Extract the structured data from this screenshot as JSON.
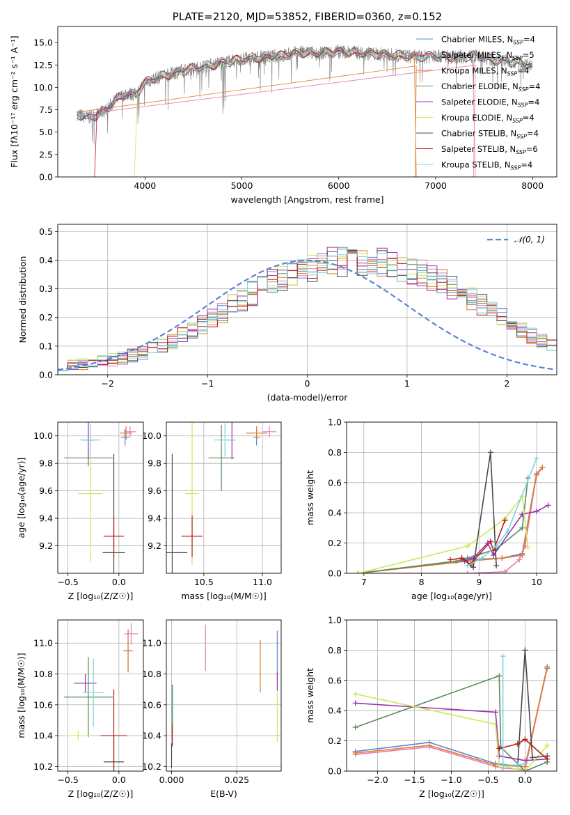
{
  "colors": {
    "Chabrier MILES": "#5b84d6",
    "Salpeter MILES": "#e87bb1",
    "Kroupa MILES": "#e07b2a",
    "Chabrier ELODIE": "#5a8a5a",
    "Salpeter ELODIE": "#9932b0",
    "Kroupa ELODIE": "#cde85a",
    "Chabrier STELIB": "#4a4a4a",
    "Salpeter STELIB": "#b51b1b",
    "Kroupa STELIB": "#7fd3dd",
    "gauss": "#5b84d6",
    "data": "#7f7f7f"
  },
  "chart_data": [
    {
      "id": "spectrum",
      "type": "line",
      "title": "PLATE=2120, MJD=53852, FIBERID=0360, z=0.152",
      "xlabel": "wavelength [Angstrom, rest frame]",
      "ylabel": "Flux [fλ10⁻¹⁷ erg cm⁻² s⁻¹ A⁻¹]",
      "xlim": [
        3100,
        8250
      ],
      "ylim": [
        0,
        16.8
      ],
      "xticks": [
        4000,
        5000,
        6000,
        7000,
        8000
      ],
      "yticks": [
        0.0,
        2.5,
        5.0,
        7.5,
        10.0,
        12.5,
        15.0
      ],
      "grid": false,
      "legend_position": "top-right",
      "continuum_x": [
        3300,
        3400,
        3500,
        3600,
        3700,
        3800,
        3900,
        4000,
        4100,
        4200,
        4400,
        4600,
        4800,
        5000,
        5200,
        5400,
        5600,
        5800,
        6000,
        6200,
        6400,
        6600,
        6800,
        7000,
        7200,
        7400,
        7600,
        7800,
        8000
      ],
      "continuum_y": [
        7.0,
        6.6,
        6.9,
        7.5,
        8.6,
        9.3,
        9.2,
        10.5,
        11.0,
        11.3,
        11.9,
        12.3,
        12.8,
        13.1,
        13.4,
        13.5,
        13.9,
        13.8,
        14.0,
        13.9,
        13.7,
        13.6,
        13.4,
        13.5,
        13.4,
        13.5,
        13.1,
        12.9,
        12.4
      ],
      "dropouts": [
        {
          "series": "Salpeter STELIB",
          "x": [
            3480,
            3500,
            3505
          ]
        },
        {
          "series": "Kroupa ELODIE",
          "x": [
            3890,
            3920,
            3925
          ]
        },
        {
          "series": "Kroupa MILES",
          "x": [
            6790,
            6800,
            6805
          ]
        },
        {
          "series": "Salpeter MILES",
          "x": [
            7390,
            7410,
            7415
          ]
        }
      ],
      "legend": [
        {
          "series": "Chabrier MILES",
          "prefix": "Chabrier MILES, N",
          "sub": "SSP",
          "suffix": "=4"
        },
        {
          "series": "Salpeter MILES",
          "prefix": "Salpeter MILES, N",
          "sub": "SSP",
          "suffix": "=5"
        },
        {
          "series": "Kroupa MILES",
          "prefix": "Kroupa MILES, N",
          "sub": "SSP",
          "suffix": "=4"
        },
        {
          "series": "Chabrier ELODIE",
          "prefix": "Chabrier ELODIE, N",
          "sub": "SSP",
          "suffix": "=4"
        },
        {
          "series": "Salpeter ELODIE",
          "prefix": "Salpeter ELODIE, N",
          "sub": "SSP",
          "suffix": "=4"
        },
        {
          "series": "Kroupa ELODIE",
          "prefix": "Kroupa ELODIE, N",
          "sub": "SSP",
          "suffix": "=4"
        },
        {
          "series": "Chabrier STELIB",
          "prefix": "Chabrier STELIB, N",
          "sub": "SSP",
          "suffix": "=4"
        },
        {
          "series": "Salpeter STELIB",
          "prefix": "Salpeter STELIB, N",
          "sub": "SSP",
          "suffix": "=6"
        },
        {
          "series": "Kroupa STELIB",
          "prefix": "Kroupa STELIB, N",
          "sub": "SSP",
          "suffix": "=4"
        }
      ]
    },
    {
      "id": "residuals",
      "type": "bar",
      "xlabel": "(data-model)/error",
      "ylabel": "Normed distribution",
      "xlim": [
        -2.5,
        2.5
      ],
      "ylim": [
        0,
        0.525
      ],
      "xticks": [
        -2,
        -1,
        0,
        1,
        2
      ],
      "yticks": [
        0.0,
        0.1,
        0.2,
        0.3,
        0.4,
        0.5
      ],
      "grid": true,
      "legend_position": "top-right",
      "gauss_label": "𝒩(0, 1)",
      "bin_width": 0.1,
      "bin_start": -2.5,
      "envelope": [
        0.035,
        0.036,
        0.039,
        0.043,
        0.047,
        0.052,
        0.058,
        0.066,
        0.076,
        0.088,
        0.102,
        0.118,
        0.135,
        0.155,
        0.175,
        0.197,
        0.218,
        0.241,
        0.262,
        0.284,
        0.303,
        0.322,
        0.338,
        0.353,
        0.365,
        0.376,
        0.386,
        0.392,
        0.396,
        0.398,
        0.398,
        0.396,
        0.392,
        0.386,
        0.376,
        0.365,
        0.353,
        0.338,
        0.322,
        0.303,
        0.284,
        0.262,
        0.241,
        0.218,
        0.197,
        0.175,
        0.155,
        0.135,
        0.118,
        0.102,
        0.088,
        0.076,
        0.066,
        0.058,
        0.052,
        0.047,
        0.043,
        0.039,
        0.036,
        0.035
      ],
      "series_order": [
        "Chabrier MILES",
        "Salpeter MILES",
        "Kroupa MILES",
        "Chabrier ELODIE",
        "Salpeter ELODIE",
        "Kroupa ELODIE",
        "Chabrier STELIB",
        "Salpeter STELIB",
        "Kroupa STELIB"
      ]
    },
    {
      "id": "age-vs-Z",
      "type": "scatter",
      "xlabel": "Z [log₁₀(Z/Z☉)]",
      "ylabel": "age  [log₁₀(age/yr)]",
      "xlim": [
        -0.6,
        0.24
      ],
      "ylim": [
        9.0,
        10.1
      ],
      "xticks": [
        -0.5,
        0.0
      ],
      "xticklabels": [
        "−0.5",
        "0.0"
      ],
      "yticks": [
        9.2,
        9.4,
        9.6,
        9.8,
        10.0
      ],
      "grid": true,
      "points": [
        {
          "series": "Chabrier MILES",
          "x": 0.06,
          "y": 9.99,
          "xerr": 0.04,
          "yerr": 0.06
        },
        {
          "series": "Salpeter MILES",
          "x": 0.11,
          "y": 10.03,
          "xerr": 0.06,
          "yerr": 0.04
        },
        {
          "series": "Kroupa MILES",
          "x": 0.07,
          "y": 10.02,
          "xerr": 0.06,
          "yerr": 0.05
        },
        {
          "series": "Chabrier ELODIE",
          "x": -0.3,
          "y": 9.84,
          "xerr": 0.24,
          "yerr": 0.06
        },
        {
          "series": "Salpeter ELODIE",
          "x": -0.3,
          "y": 9.97,
          "xerr": 0.06,
          "yerr": 0.14
        },
        {
          "series": "Kroupa ELODIE",
          "x": -0.28,
          "y": 9.58,
          "xerr": 0.12,
          "yerr": 0.5
        },
        {
          "series": "Chabrier STELIB",
          "x": -0.05,
          "y": 9.15,
          "xerr": 0.11,
          "yerr": 0.72
        },
        {
          "series": "Salpeter STELIB",
          "x": -0.05,
          "y": 9.27,
          "xerr": 0.1,
          "yerr": 0.15
        },
        {
          "series": "Kroupa STELIB",
          "x": -0.28,
          "y": 9.97,
          "xerr": 0.1,
          "yerr": 0.12
        }
      ]
    },
    {
      "id": "age-vs-mass",
      "type": "scatter",
      "xlabel": "mass [log₁₀(M/M☉)]",
      "ylabel": "",
      "xlim": [
        10.18,
        11.16
      ],
      "ylim": [
        9.0,
        10.1
      ],
      "xticks": [
        10.5,
        11.0
      ],
      "xticklabels": [
        "10.5",
        "11.0"
      ],
      "yticks": [
        9.2,
        9.4,
        9.6,
        9.8,
        10.0
      ],
      "grid": true,
      "points": [
        {
          "series": "Chabrier MILES",
          "x": 10.95,
          "y": 9.99,
          "xerr": 0.03,
          "yerr": 0.06
        },
        {
          "series": "Salpeter MILES",
          "x": 11.06,
          "y": 10.03,
          "xerr": 0.06,
          "yerr": 0.04
        },
        {
          "series": "Kroupa MILES",
          "x": 10.95,
          "y": 10.02,
          "xerr": 0.09,
          "yerr": 0.05
        },
        {
          "series": "Chabrier ELODIE",
          "x": 10.65,
          "y": 9.84,
          "xerr": 0.11,
          "yerr": 0.24
        },
        {
          "series": "Salpeter ELODIE",
          "x": 10.74,
          "y": 9.97,
          "xerr": 0.03,
          "yerr": 0.14
        },
        {
          "series": "Kroupa ELODIE",
          "x": 10.4,
          "y": 9.58,
          "xerr": 0.06,
          "yerr": 0.52
        },
        {
          "series": "Chabrier STELIB",
          "x": 10.23,
          "y": 9.15,
          "xerr": 0.13,
          "yerr": 0.72
        },
        {
          "series": "Salpeter STELIB",
          "x": 10.4,
          "y": 9.27,
          "xerr": 0.09,
          "yerr": 0.15
        },
        {
          "series": "Kroupa STELIB",
          "x": 10.68,
          "y": 9.97,
          "xerr": 0.09,
          "yerr": 0.12
        }
      ]
    },
    {
      "id": "weight-vs-age",
      "type": "line",
      "xlabel": "age  [log₁₀(age/yr)]",
      "ylabel": "mass weight",
      "xlim": [
        6.7,
        10.35
      ],
      "ylim": [
        0.0,
        1.0
      ],
      "xticks": [
        7,
        8,
        9,
        10
      ],
      "yticks": [
        0.0,
        0.2,
        0.4,
        0.6,
        0.8,
        1.0
      ],
      "grid": true,
      "series": [
        {
          "name": "Chabrier MILES",
          "x": [
            6.9,
            8.8,
            9.4,
            9.75,
            10.0,
            10.1
          ],
          "y": [
            0.0,
            0.09,
            0.1,
            0.13,
            0.66,
            0.7
          ]
        },
        {
          "name": "Salpeter MILES",
          "x": [
            6.9,
            8.8,
            9.45,
            9.7,
            9.8,
            10.0,
            10.1
          ],
          "y": [
            0.0,
            0.0,
            0.01,
            0.09,
            0.18,
            0.66,
            0.7
          ]
        },
        {
          "name": "Kroupa MILES",
          "x": [
            6.9,
            8.8,
            9.4,
            9.75,
            10.0,
            10.1
          ],
          "y": [
            0.0,
            0.08,
            0.1,
            0.12,
            0.65,
            0.7
          ]
        },
        {
          "name": "Chabrier ELODIE",
          "x": [
            6.9,
            8.6,
            8.8,
            9.3,
            9.75,
            9.85
          ],
          "y": [
            0.0,
            0.08,
            0.1,
            0.16,
            0.3,
            0.63
          ]
        },
        {
          "name": "Salpeter ELODIE",
          "x": [
            8.75,
            8.9,
            9.15,
            9.25,
            9.75,
            10.0,
            10.2
          ],
          "y": [
            0.08,
            0.1,
            0.2,
            0.12,
            0.39,
            0.41,
            0.45
          ]
        },
        {
          "name": "Kroupa ELODIE",
          "x": [
            6.9,
            8.8,
            9.45,
            9.75,
            9.85
          ],
          "y": [
            0.0,
            0.18,
            0.36,
            0.51,
            0.17
          ]
        },
        {
          "name": "Chabrier STELIB",
          "x": [
            8.7,
            8.9,
            9.2,
            9.3
          ],
          "y": [
            0.1,
            0.04,
            0.8,
            0.05
          ]
        },
        {
          "name": "Salpeter STELIB",
          "x": [
            8.5,
            8.7,
            8.85,
            9.2,
            9.25,
            9.45
          ],
          "y": [
            0.09,
            0.1,
            0.06,
            0.21,
            0.15,
            0.35
          ]
        },
        {
          "name": "Kroupa STELIB",
          "x": [
            8.8,
            9.05,
            9.3,
            9.5,
            10.0
          ],
          "y": [
            0.05,
            0.1,
            0.18,
            0.28,
            0.76
          ]
        }
      ]
    },
    {
      "id": "mass-vs-Z",
      "type": "scatter",
      "xlabel": "Z [log₁₀(Z/Z☉)]",
      "ylabel": "mass [log₁₀(M/M☉)]",
      "xlim": [
        -0.6,
        0.24
      ],
      "ylim": [
        10.17,
        11.15
      ],
      "xticks": [
        -0.5,
        0.0
      ],
      "xticklabels": [
        "−0.5",
        "0.0"
      ],
      "yticks": [
        10.2,
        10.4,
        10.6,
        10.8,
        11.0
      ],
      "grid": true,
      "points": [
        {
          "series": "Chabrier MILES",
          "x": 0.09,
          "y": 10.95,
          "xerr": 0.04,
          "yerr": 0.14
        },
        {
          "series": "Salpeter MILES",
          "x": 0.12,
          "y": 11.06,
          "xerr": 0.07,
          "yerr": 0.07
        },
        {
          "series": "Kroupa MILES",
          "x": 0.09,
          "y": 10.95,
          "xerr": 0.05,
          "yerr": 0.13
        },
        {
          "series": "Chabrier ELODIE",
          "x": -0.3,
          "y": 10.65,
          "xerr": 0.24,
          "yerr": 0.26
        },
        {
          "series": "Salpeter ELODIE",
          "x": -0.33,
          "y": 10.74,
          "xerr": 0.11,
          "yerr": 0.06
        },
        {
          "series": "Kroupa ELODIE",
          "x": -0.4,
          "y": 10.4,
          "xerr": 0.12,
          "yerr": 0.03
        },
        {
          "series": "Chabrier STELIB",
          "x": -0.05,
          "y": 10.23,
          "xerr": 0.1,
          "yerr": 0.16
        },
        {
          "series": "Salpeter STELIB",
          "x": -0.05,
          "y": 10.4,
          "xerr": 0.13,
          "yerr": 0.3
        },
        {
          "series": "Kroupa STELIB",
          "x": -0.25,
          "y": 10.68,
          "xerr": 0.1,
          "yerr": 0.22
        }
      ]
    },
    {
      "id": "mass-vs-EBV",
      "type": "scatter",
      "xlabel": "E(B-V)",
      "ylabel": "",
      "xlim": [
        -0.002,
        0.042
      ],
      "ylim": [
        10.17,
        11.15
      ],
      "xticks": [
        0.0,
        0.025
      ],
      "xticklabels": [
        "0.000",
        "0.025"
      ],
      "yticks": [
        10.2,
        10.4,
        10.6,
        10.8,
        11.0
      ],
      "grid": true,
      "points": [
        {
          "series": "Chabrier MILES",
          "x": 0.0405,
          "y": 10.92,
          "xerr": 0.0,
          "yerr": 0.16
        },
        {
          "series": "Salpeter MILES",
          "x": 0.013,
          "y": 10.97,
          "xerr": 0.0,
          "yerr": 0.15
        },
        {
          "series": "Kroupa MILES",
          "x": 0.034,
          "y": 10.85,
          "xerr": 0.0,
          "yerr": 0.17
        },
        {
          "series": "Chabrier ELODIE",
          "x": 0.0002,
          "y": 10.55,
          "xerr": 0.0,
          "yerr": 0.18
        },
        {
          "series": "Salpeter ELODIE",
          "x": 0.0405,
          "y": 10.75,
          "xerr": 0.0,
          "yerr": 0.06
        },
        {
          "series": "Kroupa ELODIE",
          "x": 0.0405,
          "y": 10.52,
          "xerr": 0.0,
          "yerr": 0.16
        },
        {
          "series": "Chabrier STELIB",
          "x": 0.0,
          "y": 10.27,
          "xerr": 0.0,
          "yerr": 0.08
        },
        {
          "series": "Salpeter STELIB",
          "x": 0.0003,
          "y": 10.4,
          "xerr": 0.0,
          "yerr": 0.07
        },
        {
          "series": "Kroupa STELIB",
          "x": 0.0005,
          "y": 10.6,
          "xerr": 0.0,
          "yerr": 0.13
        }
      ]
    },
    {
      "id": "weight-vs-Z",
      "type": "line",
      "xlabel": "Z [log₁₀(Z/Z☉)]",
      "ylabel": "mass weight",
      "xlim": [
        -2.42,
        0.43
      ],
      "ylim": [
        0.0,
        1.0
      ],
      "xticks": [
        -2.0,
        -1.5,
        -1.0,
        -0.5,
        0.0
      ],
      "xticklabels": [
        "−2.0",
        "−1.5",
        "−1.0",
        "−0.5",
        "0.0"
      ],
      "yticks": [
        0.0,
        0.2,
        0.4,
        0.6,
        0.8,
        1.0
      ],
      "grid": true,
      "series": [
        {
          "name": "Chabrier MILES",
          "x": [
            -2.3,
            -1.3,
            -0.4,
            0.0,
            0.3
          ],
          "y": [
            0.13,
            0.19,
            0.05,
            0.03,
            0.68
          ]
        },
        {
          "name": "Salpeter MILES",
          "x": [
            -2.3,
            -1.3,
            -0.4,
            -0.3,
            0.0,
            0.3
          ],
          "y": [
            0.11,
            0.16,
            0.03,
            0.02,
            0.01,
            0.69
          ]
        },
        {
          "name": "Kroupa MILES",
          "x": [
            -2.3,
            -1.3,
            -0.4,
            0.0,
            0.3
          ],
          "y": [
            0.12,
            0.17,
            0.04,
            0.03,
            0.69
          ]
        },
        {
          "name": "Chabrier ELODIE",
          "x": [
            -2.3,
            -0.35,
            -0.33,
            0.0,
            0.3
          ],
          "y": [
            0.29,
            0.63,
            0.16,
            0.0,
            0.06
          ]
        },
        {
          "name": "Salpeter ELODIE",
          "x": [
            -2.3,
            -0.4,
            -0.35,
            0.0,
            0.3
          ],
          "y": [
            0.45,
            0.39,
            0.1,
            0.07,
            0.08
          ]
        },
        {
          "name": "Kroupa ELODIE",
          "x": [
            -2.3,
            -0.4,
            -0.35,
            0.0,
            0.3
          ],
          "y": [
            0.51,
            0.31,
            0.04,
            0.0,
            0.17
          ]
        },
        {
          "name": "Chabrier STELIB",
          "x": [
            -0.3,
            -0.1,
            0.0,
            0.1,
            0.3
          ],
          "y": [
            0.04,
            0.04,
            0.8,
            0.09,
            0.1
          ]
        },
        {
          "name": "Salpeter STELIB",
          "x": [
            -0.35,
            -0.1,
            0.0,
            0.3
          ],
          "y": [
            0.15,
            0.18,
            0.21,
            0.08
          ]
        },
        {
          "name": "Kroupa STELIB",
          "x": [
            -0.3,
            -0.3,
            -0.1,
            0.0
          ],
          "y": [
            0.76,
            0.04,
            0.04,
            0.05
          ]
        }
      ]
    }
  ]
}
